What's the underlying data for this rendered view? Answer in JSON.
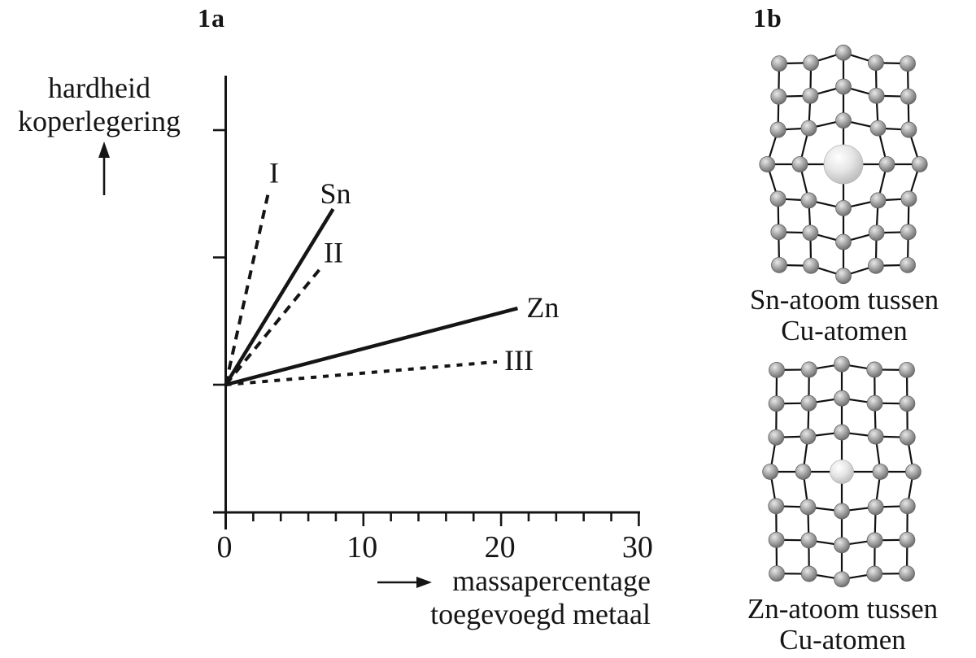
{
  "chart_data": {
    "type": "line",
    "title": "1a",
    "ylabel_lines": [
      "hardheid",
      "koperlegering"
    ],
    "xlabel_lines": [
      "massapercentage",
      "toegevoegd metaal"
    ],
    "xlim": [
      0,
      30
    ],
    "x_ticks": [
      0,
      10,
      20,
      30
    ],
    "x_minor_tick_step": 2,
    "y_axis_note": "qualitative axis: no numeric labels; 0 = hardness of pure copper, units = one y-tick interval",
    "y_ticks_units": [
      0,
      1,
      2
    ],
    "grid": "off",
    "legend": "labels at line ends",
    "series": [
      {
        "label": "I",
        "style": "dashed",
        "points": [
          [
            0,
            0
          ],
          [
            3.1,
            1.51
          ]
        ]
      },
      {
        "label": "Sn",
        "style": "solid",
        "points": [
          [
            0,
            0
          ],
          [
            7.8,
            1.38
          ]
        ]
      },
      {
        "label": "II",
        "style": "dashed",
        "points": [
          [
            0,
            0
          ],
          [
            7.0,
            0.93
          ]
        ]
      },
      {
        "label": "Zn",
        "style": "solid",
        "points": [
          [
            0,
            0
          ],
          [
            21.2,
            0.6
          ]
        ]
      },
      {
        "label": "III",
        "style": "dashed",
        "points": [
          [
            0,
            0
          ],
          [
            19.7,
            0.18
          ]
        ]
      }
    ]
  },
  "figure_1b": {
    "label": "1b",
    "grid": {
      "cols": 5,
      "rows": 7,
      "cu_radius": 9.5
    },
    "lattices": [
      {
        "caption": [
          "Sn-atoom tussen",
          "Cu-atomen"
        ],
        "solute_label": "Sn",
        "solute_radius": 24,
        "distortion": 14
      },
      {
        "caption": [
          "Zn-atoom tussen",
          "Cu-atomen"
        ],
        "solute_label": "Zn",
        "solute_radius": 14.5,
        "distortion": 7.5
      }
    ]
  },
  "colors": {
    "ink": "#151515",
    "bond": "#111111",
    "cu_highlight": "#e8e8e8",
    "cu_mid": "#a8a8a8",
    "cu_edge": "#636363",
    "solute_highlight": "#ffffff",
    "solute_mid": "#e6e6e6",
    "solute_edge": "#b6b6b6"
  }
}
